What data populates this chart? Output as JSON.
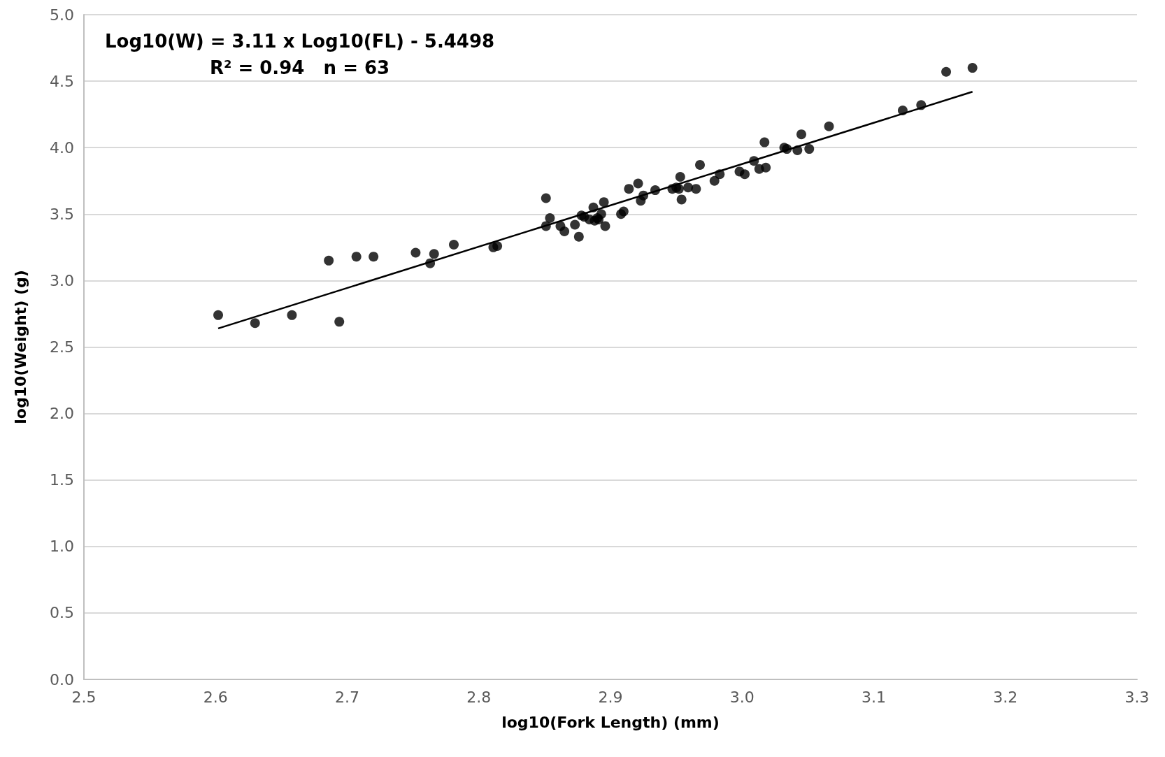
{
  "chart_data": {
    "type": "scatter",
    "xlabel": "log10(Fork Length) (mm)",
    "ylabel": "log10(Weight) (g)",
    "annotations": [
      "Log10(W) = 3.11 x Log10(FL) - 5.4498",
      "R² = 0.94   n = 63"
    ],
    "xlim": [
      2.5,
      3.3
    ],
    "xticks": [
      {
        "value": 2.5,
        "label": "2.5"
      },
      {
        "value": 2.6,
        "label": "2.6"
      },
      {
        "value": 2.7,
        "label": "2.7"
      },
      {
        "value": 2.8,
        "label": "2.8"
      },
      {
        "value": 2.9,
        "label": "2.9"
      },
      {
        "value": 3.0,
        "label": "3.0"
      },
      {
        "value": 3.1,
        "label": "3.1"
      },
      {
        "value": 3.2,
        "label": "3.2"
      },
      {
        "value": 3.3,
        "label": "3.3"
      }
    ],
    "ylim": [
      0,
      5
    ],
    "yticks": [
      {
        "value": 0,
        "label": "0.0"
      },
      {
        "value": 0.5,
        "label": "0.5"
      },
      {
        "value": 1,
        "label": "1.0"
      },
      {
        "value": 1.5,
        "label": "1.5"
      },
      {
        "value": 2,
        "label": "2.0"
      },
      {
        "value": 2.5,
        "label": "2.5"
      },
      {
        "value": 3,
        "label": "3.0"
      },
      {
        "value": 3.5,
        "label": "3.5"
      },
      {
        "value": 4,
        "label": "4.0"
      },
      {
        "value": 4.5,
        "label": "4.5"
      },
      {
        "value": 5,
        "label": "5.0"
      }
    ],
    "grid": "y",
    "marker": "circle",
    "series": [
      {
        "color": "#000000",
        "x": [
          2.602,
          2.63,
          2.658,
          2.686,
          2.694,
          2.707,
          2.72,
          2.752,
          2.763,
          2.766,
          2.781,
          2.814,
          2.851,
          2.854,
          2.851,
          2.862,
          2.865,
          2.873,
          2.876,
          2.878,
          2.887,
          2.884,
          2.888,
          2.893,
          2.895,
          2.896,
          2.891,
          2.908,
          2.91,
          2.914,
          2.921,
          2.923,
          2.925,
          2.934,
          2.947,
          2.953,
          2.952,
          2.954,
          2.959,
          2.965,
          2.968,
          2.979,
          2.983,
          2.998,
          3.002,
          3.009,
          3.013,
          3.018,
          3.017,
          3.034,
          3.032,
          3.042,
          3.045,
          3.051,
          3.066,
          3.122,
          3.136,
          3.155,
          3.175,
          2.88,
          2.89,
          2.95,
          2.811
        ],
        "values": [
          2.74,
          2.68,
          2.74,
          3.15,
          2.69,
          3.18,
          3.18,
          3.21,
          3.13,
          3.2,
          3.27,
          3.26,
          3.62,
          3.47,
          3.41,
          3.41,
          3.37,
          3.42,
          3.33,
          3.49,
          3.55,
          3.46,
          3.45,
          3.5,
          3.59,
          3.41,
          3.46,
          3.5,
          3.52,
          3.69,
          3.73,
          3.6,
          3.64,
          3.68,
          3.69,
          3.78,
          3.69,
          3.61,
          3.7,
          3.69,
          3.87,
          3.75,
          3.8,
          3.82,
          3.8,
          3.9,
          3.84,
          3.85,
          4.04,
          3.99,
          4.0,
          3.98,
          4.1,
          3.99,
          4.16,
          4.28,
          4.32,
          4.57,
          4.6,
          3.48,
          3.47,
          3.7,
          3.25
        ]
      },
      {
        "type": "line",
        "color": "#000000",
        "marker": "none",
        "x": [
          2.602,
          3.175
        ],
        "values": [
          2.64,
          4.42
        ]
      }
    ]
  }
}
